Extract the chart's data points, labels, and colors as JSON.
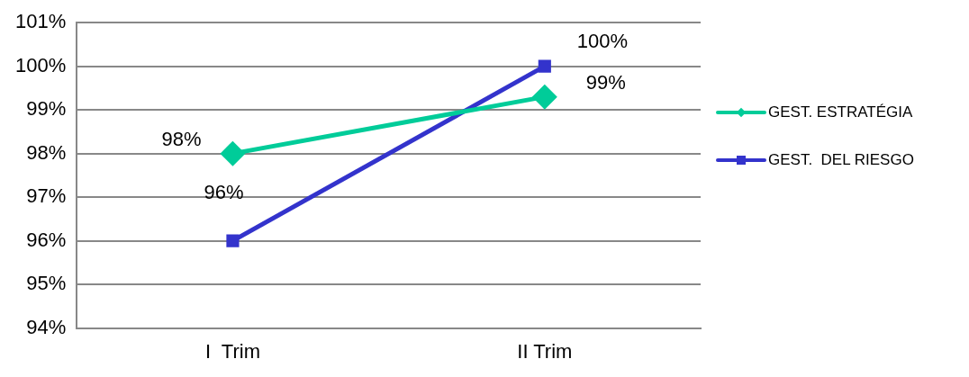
{
  "chart_data": {
    "type": "line",
    "categories": [
      "I  Trim",
      "II Trim"
    ],
    "series": [
      {
        "name": "GEST. ESTRATÉGIA",
        "color": "#00cc99",
        "values": [
          98,
          99.3
        ],
        "value_labels": [
          "98%",
          "99%"
        ],
        "marker": "diamond"
      },
      {
        "name": "GEST.  DEL RIESGO",
        "color": "#3333cc",
        "values": [
          96,
          100
        ],
        "value_labels": [
          "96%",
          "100%"
        ],
        "marker": "square"
      }
    ],
    "ylim": [
      94,
      101
    ],
    "yticks": [
      {
        "value": 94,
        "label": "94%"
      },
      {
        "value": 95,
        "label": "95%"
      },
      {
        "value": 96,
        "label": "96%"
      },
      {
        "value": 97,
        "label": "97%"
      },
      {
        "value": 98,
        "label": "98%"
      },
      {
        "value": 99,
        "label": "99%"
      },
      {
        "value": 100,
        "label": "100%"
      },
      {
        "value": 101,
        "label": "101%"
      }
    ],
    "grid": "y",
    "legend": "right"
  }
}
